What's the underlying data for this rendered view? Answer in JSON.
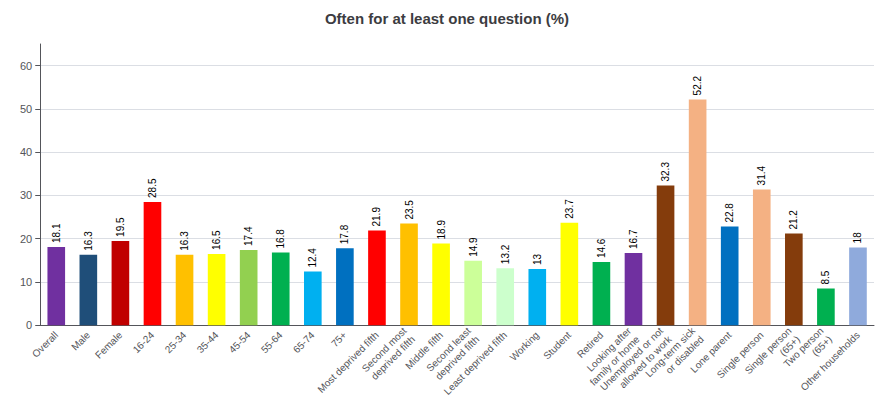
{
  "chart_data": {
    "type": "bar",
    "title": "Often for at least one question (%)",
    "categories": [
      "Overall",
      "Male",
      "Female",
      "16-24",
      "25-34",
      "35-44",
      "45-54",
      "55-64",
      "65-74",
      "75+",
      "Most deprived fifth",
      "Second most\ndeprived fifth",
      "Middle fifth",
      "Second least\ndeprived fifth",
      "Least deprived fifth",
      "Working",
      "Student",
      "Retired",
      "Looking after\nfamily or home",
      "Unemployed or not\nallowed to work",
      "Long-term sick\nor disabled",
      "Lone parent",
      "Single person",
      "Single person\n(65+)",
      "Two person\n(65+)",
      "Other households"
    ],
    "values": [
      18.1,
      16.3,
      19.5,
      28.5,
      16.3,
      16.5,
      17.4,
      16.8,
      12.4,
      17.8,
      21.9,
      23.5,
      18.9,
      14.9,
      13.2,
      13.0,
      23.7,
      14.6,
      16.7,
      32.3,
      52.2,
      22.8,
      31.4,
      21.2,
      8.5,
      18.0
    ],
    "colors": [
      "#7030a0",
      "#1f4e79",
      "#c00000",
      "#ff0000",
      "#ffc000",
      "#ffff00",
      "#92d050",
      "#00b050",
      "#00b0f0",
      "#0070c0",
      "#ff0000",
      "#ffc000",
      "#ffff00",
      "#ccff99",
      "#ccffcc",
      "#00b0f0",
      "#ffff00",
      "#00b050",
      "#7030a0",
      "#843c0c",
      "#f4b183",
      "#0070c0",
      "#f4b183",
      "#843c0c",
      "#00b050",
      "#8faadc"
    ],
    "ylim": [
      0,
      65
    ],
    "yticks": [
      0,
      10,
      20,
      30,
      40,
      50,
      60
    ],
    "grid": true,
    "data_labels": true
  }
}
